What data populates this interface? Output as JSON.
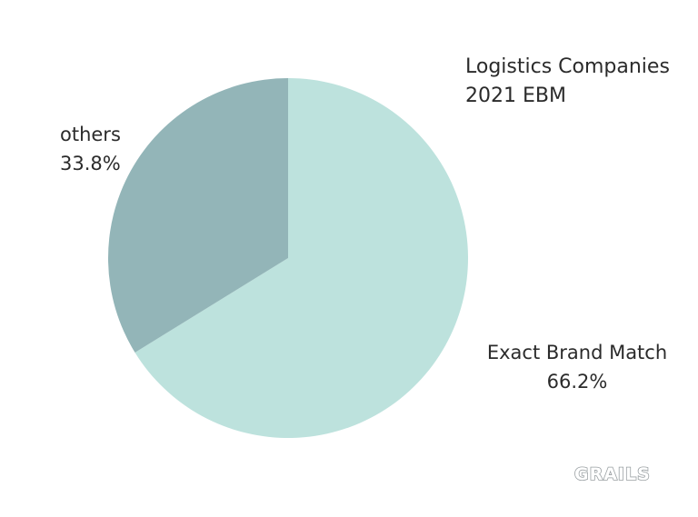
{
  "chart_data": {
    "type": "pie",
    "title_line1": "Logistics Companies",
    "title_line2": "2021 EBM",
    "slices": [
      {
        "label": "Exact Brand Match",
        "value": 66.2,
        "value_text": "66.2%",
        "color": "#bde2dd"
      },
      {
        "label": "others",
        "value": 33.8,
        "value_text": "33.8%",
        "color": "#93b5b8"
      }
    ],
    "start_angle_deg": 0,
    "direction": "clockwise"
  },
  "watermark": {
    "text": "GRAILS",
    "color": "#9aa0a3"
  }
}
